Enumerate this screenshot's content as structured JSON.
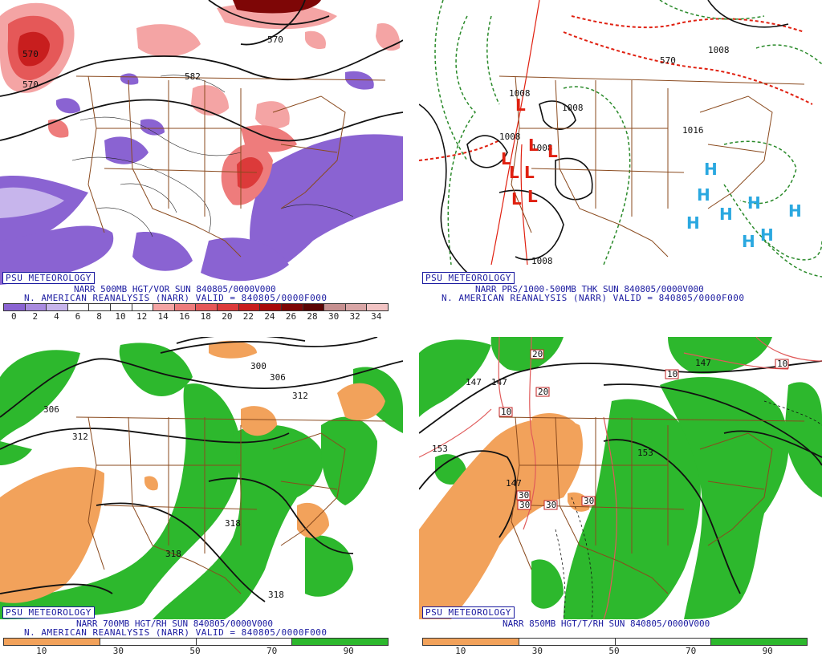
{
  "panels": [
    {
      "brand": "PSU METEOROLOGY",
      "caption_line1": "NARR 500MB HGT/VOR SUN 840805/0000V000",
      "caption_line2": "N. AMERICAN REANALYSIS (NARR) VALID = 840805/0000F000",
      "contour_labels": [
        "570",
        "570",
        "570",
        "582"
      ],
      "colorbar_ticks": [
        "0",
        "2",
        "4",
        "6",
        "8",
        "10",
        "12",
        "14",
        "16",
        "18",
        "20",
        "22",
        "24",
        "26",
        "28",
        "30",
        "32",
        "34"
      ],
      "colorbar_colors": [
        "#8a63d2",
        "#a98be0",
        "#c7b5ec",
        "#ffffff",
        "#ffffff",
        "#ffffff",
        "#ffffff",
        "#f4a4a4",
        "#ee7c7c",
        "#e55858",
        "#dc3a3a",
        "#c81e1e",
        "#a80a0a",
        "#7e0606",
        "#5a0404",
        "#c69090",
        "#d9a6a6",
        "#f2c4c4"
      ]
    },
    {
      "brand": "PSU METEOROLOGY",
      "caption_line1": "NARR PRS/1000-500MB THK SUN 840805/0000V000",
      "caption_line2": "N. AMERICAN REANALYSIS (NARR) VALID = 840805/0000F000",
      "contour_labels": [
        "570",
        "1008",
        "1008",
        "1008",
        "1008",
        "1008",
        "1008",
        "1016"
      ],
      "pressure_centers": [
        "L",
        "L",
        "L",
        "L",
        "L",
        "L",
        "L",
        "L",
        "H",
        "H",
        "H",
        "H",
        "H",
        "H",
        "H",
        "H"
      ]
    },
    {
      "brand": "PSU METEOROLOGY",
      "caption_line1": "NARR 700MB HGT/RH SUN 840805/0000V000",
      "caption_line2": "N. AMERICAN REANALYSIS (NARR) VALID = 840805/0000F000",
      "contour_labels": [
        "300",
        "306",
        "312",
        "306",
        "312",
        "318",
        "318",
        "318"
      ],
      "colorbar_ticks": [
        "10",
        "30",
        "50",
        "70",
        "90"
      ],
      "colorbar_colors": [
        "#f2a25b",
        "#ffffff",
        "#ffffff",
        "#2db82d"
      ]
    },
    {
      "brand": "PSU METEOROLOGY",
      "caption_line1": "NARR 850MB HGT/T/RH SUN 840805/0000V000",
      "contour_labels": [
        "147",
        "147",
        "153",
        "147",
        "153",
        "147",
        "20",
        "20",
        "10",
        "10",
        "10",
        "30",
        "30",
        "30",
        "30"
      ],
      "colorbar_ticks": [
        "10",
        "30",
        "50",
        "70",
        "90"
      ],
      "colorbar_colors": [
        "#f2a25b",
        "#ffffff",
        "#ffffff",
        "#2db82d"
      ]
    }
  ],
  "colors": {
    "brand_blue": "#1a1aa0",
    "state_lines": "#8a4a1e",
    "orange_rh": "#f2a25b",
    "green_rh": "#2db82d",
    "purple_vor": "#8a63d2",
    "red_vor": "#e55858",
    "low_center": "#e02010",
    "high_center": "#2aa8e0"
  }
}
